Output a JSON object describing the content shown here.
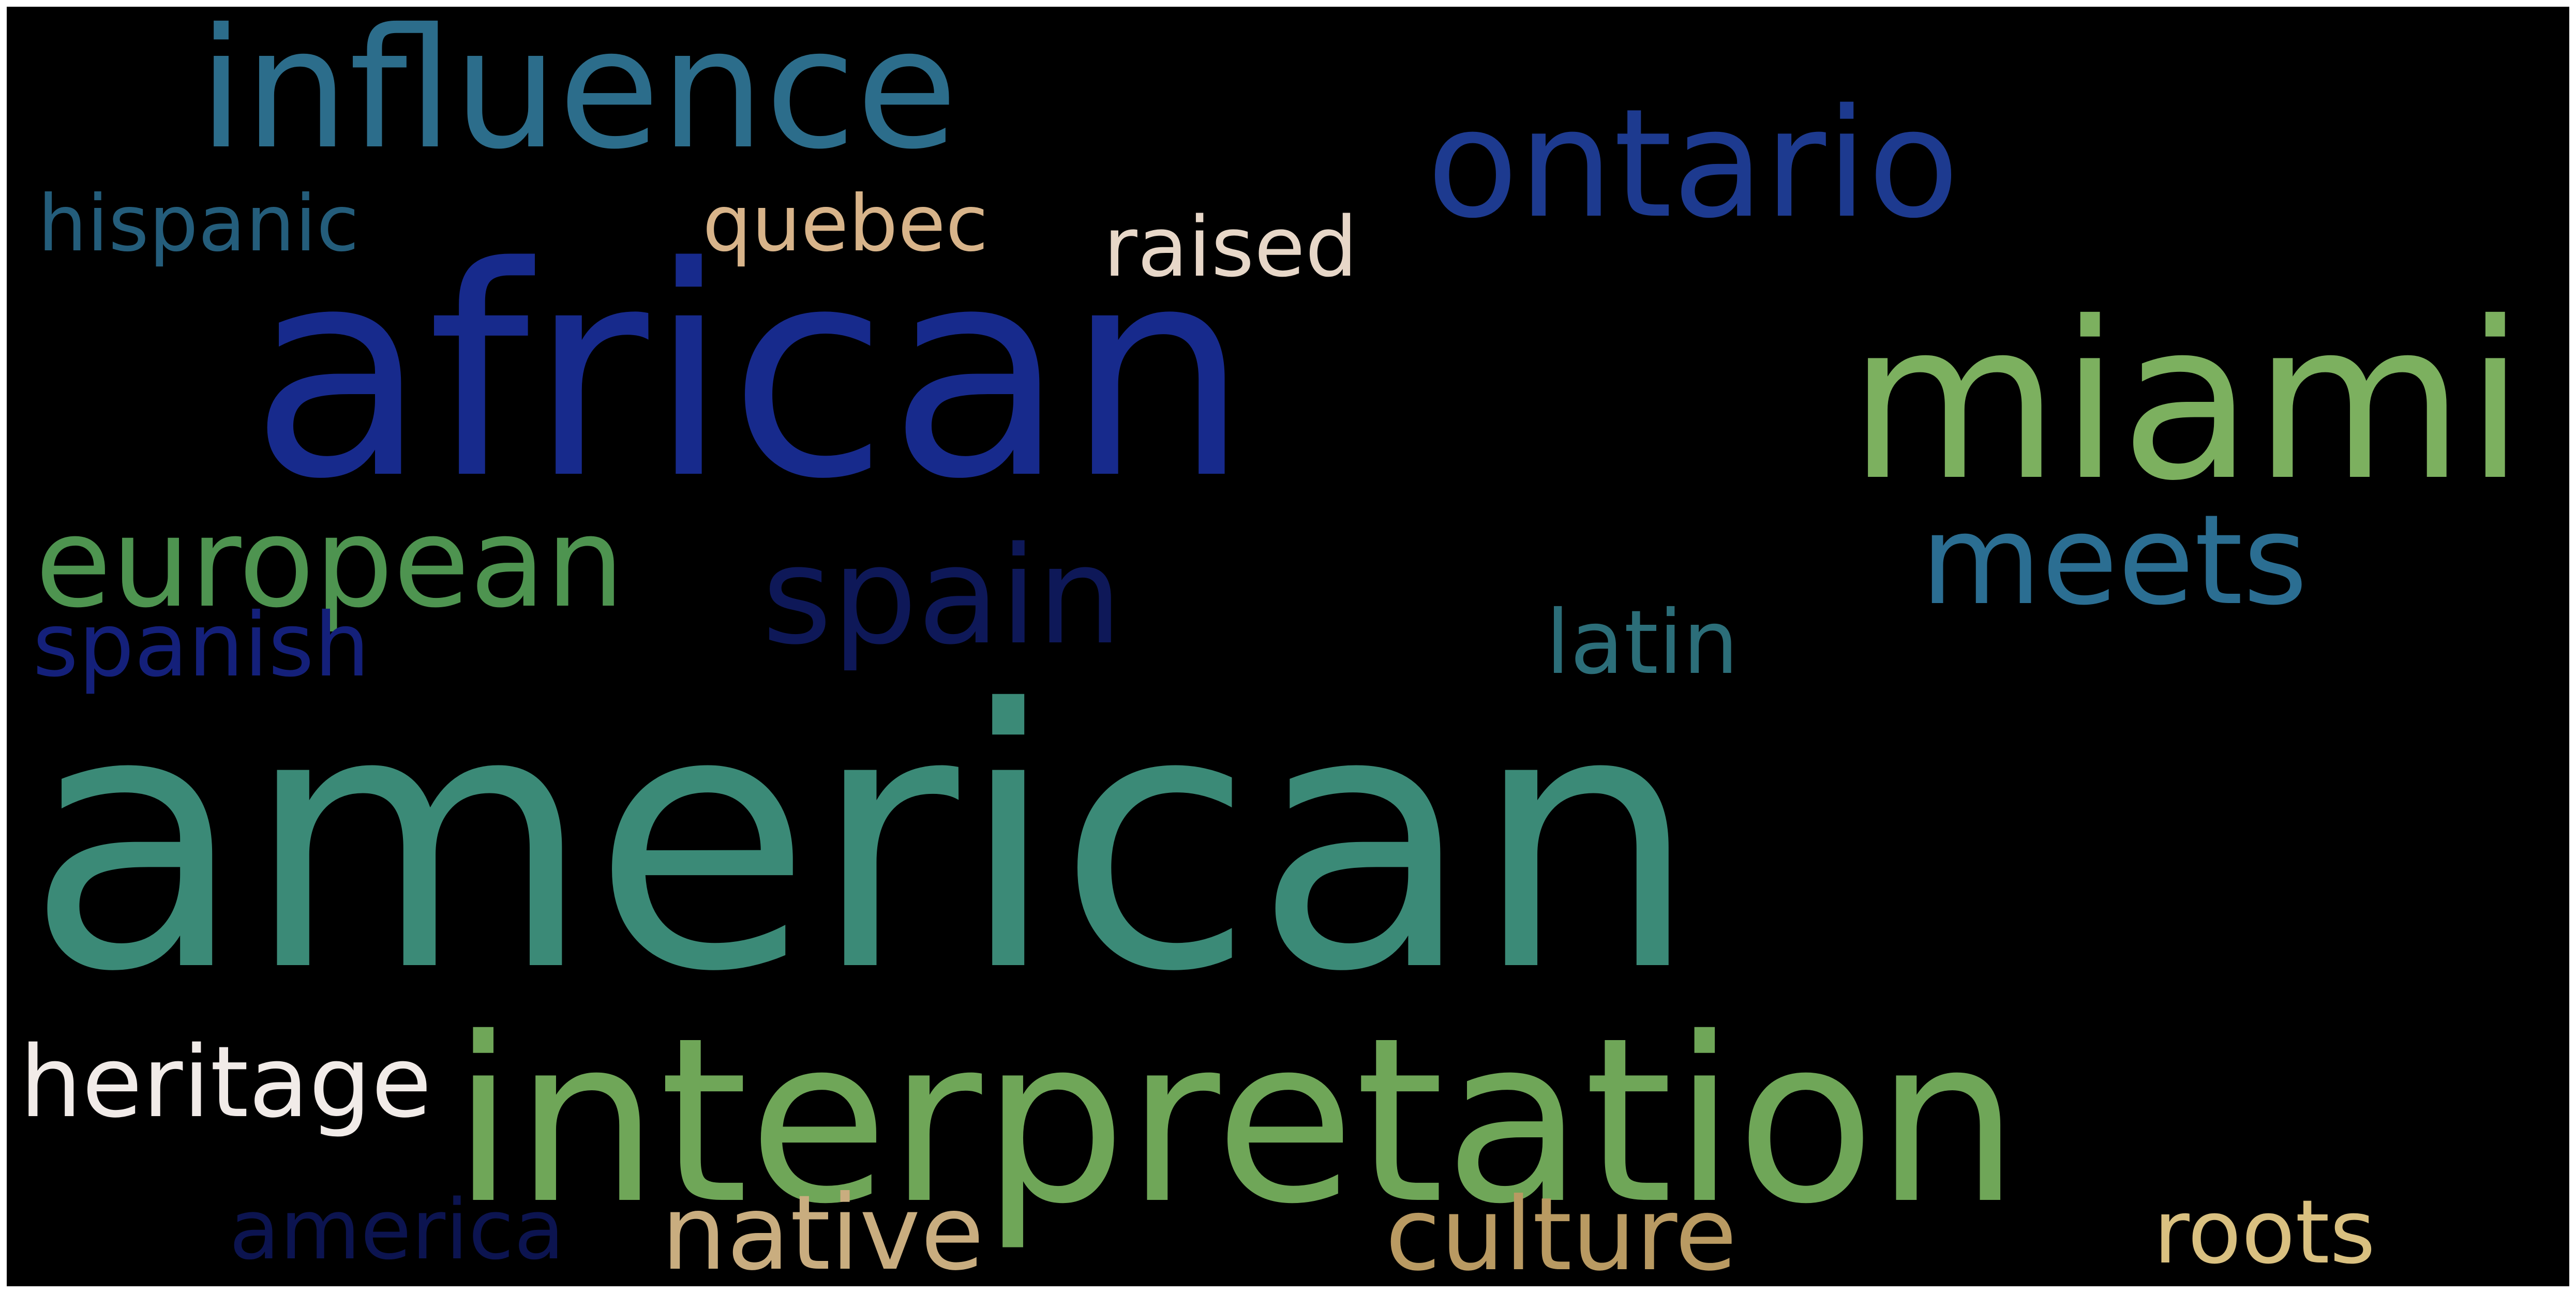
{
  "words": [
    {
      "id": "american",
      "text": "american",
      "color": "#3b8a77"
    },
    {
      "id": "african",
      "text": "african",
      "color": "#172a8c"
    },
    {
      "id": "interpretation",
      "text": "interpretation",
      "color": "#6fa658"
    },
    {
      "id": "influence",
      "text": "influence",
      "color": "#2c6d8b"
    },
    {
      "id": "ontario",
      "text": "ontario",
      "color": "#1d3a8f"
    },
    {
      "id": "miami",
      "text": "miami",
      "color": "#7cb05f"
    },
    {
      "id": "meets",
      "text": "meets",
      "color": "#2b6e92"
    },
    {
      "id": "european",
      "text": "european",
      "color": "#4e9450"
    },
    {
      "id": "spain",
      "text": "spain",
      "color": "#0e1858"
    },
    {
      "id": "hispanic",
      "text": "hispanic",
      "color": "#245d7b"
    },
    {
      "id": "quebec",
      "text": "quebec",
      "color": "#d8b48a"
    },
    {
      "id": "raised",
      "text": "raised",
      "color": "#e7d7c8"
    },
    {
      "id": "latin",
      "text": "latin",
      "color": "#2c6e79"
    },
    {
      "id": "spanish",
      "text": "spanish",
      "color": "#14207a"
    },
    {
      "id": "heritage",
      "text": "heritage",
      "color": "#f1ebe8"
    },
    {
      "id": "america",
      "text": "america",
      "color": "#0c1450"
    },
    {
      "id": "native",
      "text": "native",
      "color": "#c9ad7f"
    },
    {
      "id": "culture",
      "text": "culture",
      "color": "#b99a62"
    },
    {
      "id": "roots",
      "text": "roots",
      "color": "#d9c080"
    }
  ]
}
